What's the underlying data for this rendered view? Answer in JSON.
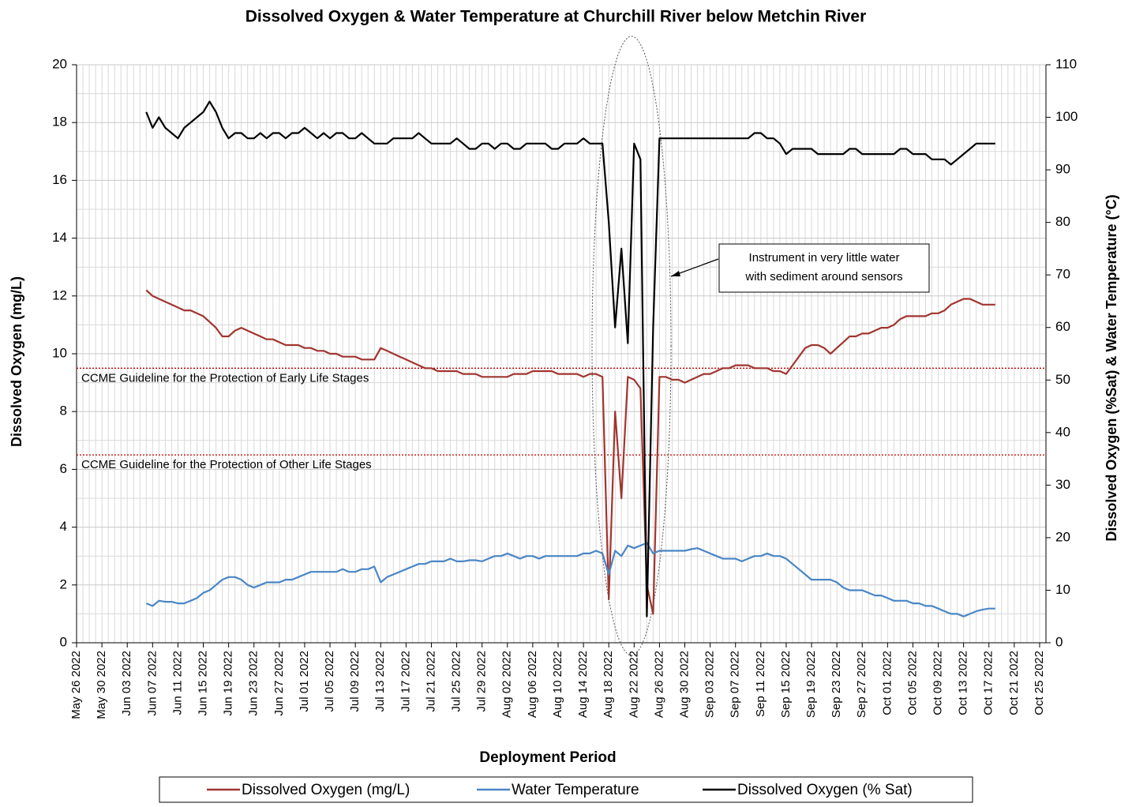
{
  "chart_data": {
    "type": "line",
    "title": "Dissolved Oxygen & Water Temperature at Churchill River below Metchin River",
    "x_label": "Deployment Period",
    "y_label": "Dissolved  Oxygen (mg/L)",
    "y2_label": "Dissolved  Oxygen (%Sat) & Water Temperature (°C)",
    "xlim": [
      "2022-05-26",
      "2022-10-26"
    ],
    "xticks": [
      {
        "value": "2022-05-26",
        "label": "May 26 2022"
      },
      {
        "value": "2022-05-30",
        "label": "May 30 2022"
      },
      {
        "value": "2022-06-03",
        "label": "Jun 03 2022"
      },
      {
        "value": "2022-06-07",
        "label": "Jun 07 2022"
      },
      {
        "value": "2022-06-11",
        "label": "Jun 11 2022"
      },
      {
        "value": "2022-06-15",
        "label": "Jun 15 2022"
      },
      {
        "value": "2022-06-19",
        "label": "Jun 19 2022"
      },
      {
        "value": "2022-06-23",
        "label": "Jun 23 2022"
      },
      {
        "value": "2022-06-27",
        "label": "Jun 27 2022"
      },
      {
        "value": "2022-07-01",
        "label": "Jul 01 2022"
      },
      {
        "value": "2022-07-05",
        "label": "Jul 05 2022"
      },
      {
        "value": "2022-07-09",
        "label": "Jul 09 2022"
      },
      {
        "value": "2022-07-13",
        "label": "Jul 13 2022"
      },
      {
        "value": "2022-07-17",
        "label": "Jul 17 2022"
      },
      {
        "value": "2022-07-21",
        "label": "Jul 21 2022"
      },
      {
        "value": "2022-07-25",
        "label": "Jul 25 2022"
      },
      {
        "value": "2022-07-29",
        "label": "Jul 29 2022"
      },
      {
        "value": "2022-08-02",
        "label": "Aug 02 2022"
      },
      {
        "value": "2022-08-06",
        "label": "Aug 06 2022"
      },
      {
        "value": "2022-08-10",
        "label": "Aug 10 2022"
      },
      {
        "value": "2022-08-14",
        "label": "Aug 14 2022"
      },
      {
        "value": "2022-08-18",
        "label": "Aug 18 2022"
      },
      {
        "value": "2022-08-22",
        "label": "Aug 22 2022"
      },
      {
        "value": "2022-08-26",
        "label": "Aug 26 2022"
      },
      {
        "value": "2022-08-30",
        "label": "Aug 30 2022"
      },
      {
        "value": "2022-09-03",
        "label": "Sep 03 2022"
      },
      {
        "value": "2022-09-07",
        "label": "Sep 07 2022"
      },
      {
        "value": "2022-09-11",
        "label": "Sep 11 2022"
      },
      {
        "value": "2022-09-15",
        "label": "Sep 15 2022"
      },
      {
        "value": "2022-09-19",
        "label": "Sep 19 2022"
      },
      {
        "value": "2022-09-23",
        "label": "Sep 23 2022"
      },
      {
        "value": "2022-09-27",
        "label": "Sep 27 2022"
      },
      {
        "value": "2022-10-01",
        "label": "Oct 01 2022"
      },
      {
        "value": "2022-10-05",
        "label": "Oct 05 2022"
      },
      {
        "value": "2022-10-09",
        "label": "Oct 09 2022"
      },
      {
        "value": "2022-10-13",
        "label": "Oct 13 2022"
      },
      {
        "value": "2022-10-17",
        "label": "Oct 17 2022"
      },
      {
        "value": "2022-10-21",
        "label": "Oct 21 2022"
      },
      {
        "value": "2022-10-25",
        "label": "Oct 25 2022"
      }
    ],
    "ylim": [
      0,
      20
    ],
    "yticks": [
      0,
      2,
      4,
      6,
      8,
      10,
      12,
      14,
      16,
      18,
      20
    ],
    "y2lim": [
      0,
      110
    ],
    "y2ticks": [
      0,
      10,
      20,
      30,
      40,
      50,
      60,
      70,
      80,
      90,
      100,
      110
    ],
    "grid": true,
    "x": [
      "2022-06-06",
      "2022-06-07",
      "2022-06-08",
      "2022-06-09",
      "2022-06-10",
      "2022-06-11",
      "2022-06-12",
      "2022-06-13",
      "2022-06-14",
      "2022-06-15",
      "2022-06-16",
      "2022-06-17",
      "2022-06-18",
      "2022-06-19",
      "2022-06-20",
      "2022-06-21",
      "2022-06-22",
      "2022-06-23",
      "2022-06-24",
      "2022-06-25",
      "2022-06-26",
      "2022-06-27",
      "2022-06-28",
      "2022-06-29",
      "2022-06-30",
      "2022-07-01",
      "2022-07-02",
      "2022-07-03",
      "2022-07-04",
      "2022-07-05",
      "2022-07-06",
      "2022-07-07",
      "2022-07-08",
      "2022-07-09",
      "2022-07-10",
      "2022-07-11",
      "2022-07-12",
      "2022-07-13",
      "2022-07-14",
      "2022-07-15",
      "2022-07-16",
      "2022-07-17",
      "2022-07-18",
      "2022-07-19",
      "2022-07-20",
      "2022-07-21",
      "2022-07-22",
      "2022-07-23",
      "2022-07-24",
      "2022-07-25",
      "2022-07-26",
      "2022-07-27",
      "2022-07-28",
      "2022-07-29",
      "2022-07-30",
      "2022-07-31",
      "2022-08-01",
      "2022-08-02",
      "2022-08-03",
      "2022-08-04",
      "2022-08-05",
      "2022-08-06",
      "2022-08-07",
      "2022-08-08",
      "2022-08-09",
      "2022-08-10",
      "2022-08-11",
      "2022-08-12",
      "2022-08-13",
      "2022-08-14",
      "2022-08-15",
      "2022-08-16",
      "2022-08-17",
      "2022-08-18",
      "2022-08-19",
      "2022-08-20",
      "2022-08-21",
      "2022-08-22",
      "2022-08-23",
      "2022-08-24",
      "2022-08-25",
      "2022-08-26",
      "2022-08-27",
      "2022-08-28",
      "2022-08-29",
      "2022-08-30",
      "2022-08-31",
      "2022-09-01",
      "2022-09-02",
      "2022-09-03",
      "2022-09-04",
      "2022-09-05",
      "2022-09-06",
      "2022-09-07",
      "2022-09-08",
      "2022-09-09",
      "2022-09-10",
      "2022-09-11",
      "2022-09-12",
      "2022-09-13",
      "2022-09-14",
      "2022-09-15",
      "2022-09-16",
      "2022-09-17",
      "2022-09-18",
      "2022-09-19",
      "2022-09-20",
      "2022-09-21",
      "2022-09-22",
      "2022-09-23",
      "2022-09-24",
      "2022-09-25",
      "2022-09-26",
      "2022-09-27",
      "2022-09-28",
      "2022-09-29",
      "2022-09-30",
      "2022-10-01",
      "2022-10-02",
      "2022-10-03",
      "2022-10-04",
      "2022-10-05",
      "2022-10-06",
      "2022-10-07",
      "2022-10-08",
      "2022-10-09",
      "2022-10-10",
      "2022-10-11",
      "2022-10-12",
      "2022-10-13",
      "2022-10-14",
      "2022-10-15",
      "2022-10-16",
      "2022-10-17",
      "2022-10-18"
    ],
    "series": [
      {
        "name": "Dissolved Oxygen (mg/L)",
        "color": "#a0352f",
        "axis": "y",
        "values": [
          12.2,
          12.0,
          11.9,
          11.8,
          11.7,
          11.6,
          11.5,
          11.5,
          11.4,
          11.3,
          11.1,
          10.9,
          10.6,
          10.6,
          10.8,
          10.9,
          10.8,
          10.7,
          10.6,
          10.5,
          10.5,
          10.4,
          10.3,
          10.3,
          10.3,
          10.2,
          10.2,
          10.1,
          10.1,
          10.0,
          10.0,
          9.9,
          9.9,
          9.9,
          9.8,
          9.8,
          9.8,
          10.2,
          10.1,
          10.0,
          9.9,
          9.8,
          9.7,
          9.6,
          9.5,
          9.5,
          9.4,
          9.4,
          9.4,
          9.4,
          9.3,
          9.3,
          9.3,
          9.2,
          9.2,
          9.2,
          9.2,
          9.2,
          9.3,
          9.3,
          9.3,
          9.4,
          9.4,
          9.4,
          9.4,
          9.3,
          9.3,
          9.3,
          9.3,
          9.2,
          9.3,
          9.3,
          9.2,
          1.5,
          8.0,
          5.0,
          9.2,
          9.1,
          8.8,
          2.0,
          1.0,
          9.2,
          9.2,
          9.1,
          9.1,
          9.0,
          9.1,
          9.2,
          9.3,
          9.3,
          9.4,
          9.5,
          9.5,
          9.6,
          9.6,
          9.6,
          9.5,
          9.5,
          9.5,
          9.4,
          9.4,
          9.3,
          9.6,
          9.9,
          10.2,
          10.3,
          10.3,
          10.2,
          10.0,
          10.2,
          10.4,
          10.6,
          10.6,
          10.7,
          10.7,
          10.8,
          10.9,
          10.9,
          11.0,
          11.2,
          11.3,
          11.3,
          11.3,
          11.3,
          11.4,
          11.4,
          11.5,
          11.7,
          11.8,
          11.9,
          11.9,
          11.8,
          11.7,
          11.7,
          11.7
        ]
      },
      {
        "name": "Water Temperature",
        "color": "#4a86c5",
        "axis": "y2",
        "values": [
          7.5,
          7.0,
          8.0,
          7.8,
          7.8,
          7.5,
          7.5,
          8.0,
          8.5,
          9.5,
          10.0,
          11.0,
          12.0,
          12.5,
          12.5,
          12.0,
          11.0,
          10.5,
          11.0,
          11.5,
          11.5,
          11.5,
          12.0,
          12.0,
          12.5,
          13.0,
          13.5,
          13.5,
          13.5,
          13.5,
          13.5,
          14.0,
          13.5,
          13.5,
          14.0,
          14.0,
          14.5,
          11.5,
          12.5,
          13.0,
          13.5,
          14.0,
          14.5,
          15.0,
          15.0,
          15.5,
          15.5,
          15.5,
          16.0,
          15.5,
          15.5,
          15.7,
          15.7,
          15.5,
          16.0,
          16.5,
          16.5,
          17.0,
          16.5,
          16.0,
          16.5,
          16.5,
          16.0,
          16.5,
          16.5,
          16.5,
          16.5,
          16.5,
          16.5,
          17.0,
          17.0,
          17.5,
          17.0,
          13.0,
          17.5,
          16.5,
          18.5,
          18.0,
          18.5,
          19.0,
          17.0,
          17.5,
          17.5,
          17.5,
          17.5,
          17.5,
          17.8,
          18.0,
          17.5,
          17.0,
          16.5,
          16.0,
          16.0,
          16.0,
          15.5,
          16.0,
          16.5,
          16.5,
          17.0,
          16.5,
          16.5,
          16.0,
          15.0,
          14.0,
          13.0,
          12.0,
          12.0,
          12.0,
          12.0,
          11.5,
          10.5,
          10.0,
          10.0,
          10.0,
          9.5,
          9.0,
          9.0,
          8.5,
          8.0,
          8.0,
          8.0,
          7.5,
          7.5,
          7.0,
          7.0,
          6.5,
          6.0,
          5.5,
          5.5,
          5.0,
          5.5,
          6.0,
          6.3,
          6.5,
          6.5
        ]
      },
      {
        "name": "Dissolved Oxygen (% Sat)",
        "color": "#000000",
        "axis": "y2",
        "values": [
          101,
          98,
          100,
          98,
          97,
          96,
          98,
          99,
          100,
          101,
          103,
          101,
          98,
          96,
          97,
          97,
          96,
          96,
          97,
          96,
          97,
          97,
          96,
          97,
          97,
          98,
          97,
          96,
          97,
          96,
          97,
          97,
          96,
          96,
          97,
          96,
          95,
          95,
          95,
          96,
          96,
          96,
          96,
          97,
          96,
          95,
          95,
          95,
          95,
          96,
          95,
          94,
          94,
          95,
          95,
          94,
          95,
          95,
          94,
          94,
          95,
          95,
          95,
          95,
          94,
          94,
          95,
          95,
          95,
          96,
          95,
          95,
          95,
          80,
          60,
          75,
          57,
          95,
          92,
          5,
          60,
          96,
          96,
          96,
          96,
          96,
          96,
          96,
          96,
          96,
          96,
          96,
          96,
          96,
          96,
          96,
          97,
          97,
          96,
          96,
          95,
          93,
          94,
          94,
          94,
          94,
          93,
          93,
          93,
          93,
          93,
          94,
          94,
          93,
          93,
          93,
          93,
          93,
          93,
          94,
          94,
          93,
          93,
          93,
          92,
          92,
          92,
          91,
          92,
          93,
          94,
          95,
          95,
          95,
          95
        ]
      }
    ],
    "reference_lines": [
      {
        "value": 9.5,
        "label": "CCME  Guideline  for the Protection of Early Life Stages",
        "color": "#c00000"
      },
      {
        "value": 6.5,
        "label": "CCME  Guideline  for the Protection of Other Life Stages",
        "color": "#c00000"
      }
    ],
    "annotation": [
      "Instrument in very little water",
      "with sediment around sensors"
    ]
  }
}
